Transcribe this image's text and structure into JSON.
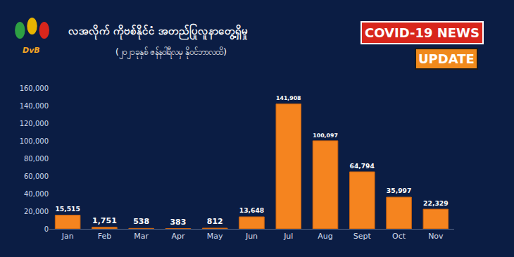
{
  "chart_data": {
    "type": "bar",
    "title": "လအလိုက် ကိုဗစ်နိုင်ငံ အတည်ပြုလူနာတွေ့ရှိမှု",
    "subtitle": "(၂၀၂၁ခုနှစ် ဇန်နဝါရီလမှ နိုဝင်ဘာလထိ)",
    "annotations": [
      "COVID-19 NEWS",
      "UPDATE",
      "DvB"
    ],
    "categories": [
      "Jan",
      "Feb",
      "Mar",
      "Apr",
      "May",
      "Jun",
      "Jul",
      "Aug",
      "Sept",
      "Oct",
      "Nov"
    ],
    "values": [
      15515,
      1751,
      538,
      383,
      812,
      13648,
      141908,
      100097,
      64794,
      35997,
      22329
    ],
    "value_labels": [
      "15,515",
      "1,751",
      "538",
      "383",
      "812",
      "13,648",
      "141,908",
      "100,097",
      "64,794",
      "35,997",
      "22,329"
    ],
    "color": "#f5841f",
    "ylim": [
      0,
      160000
    ],
    "yticks": [
      0,
      {
        "value": 20000,
        "label": "20,000"
      },
      {
        "value": 40000,
        "label": "40,000"
      },
      {
        "value": 60000,
        "label": "60,000"
      },
      {
        "value": 80000,
        "label": "80,000"
      },
      {
        "value": 100000,
        "label": "100,000"
      },
      {
        "value": 120000,
        "label": "120,000"
      },
      {
        "value": 140000,
        "label": "140,000"
      },
      {
        "value": 160000,
        "label": "160,000"
      }
    ],
    "grid": false,
    "data_labels": true
  }
}
